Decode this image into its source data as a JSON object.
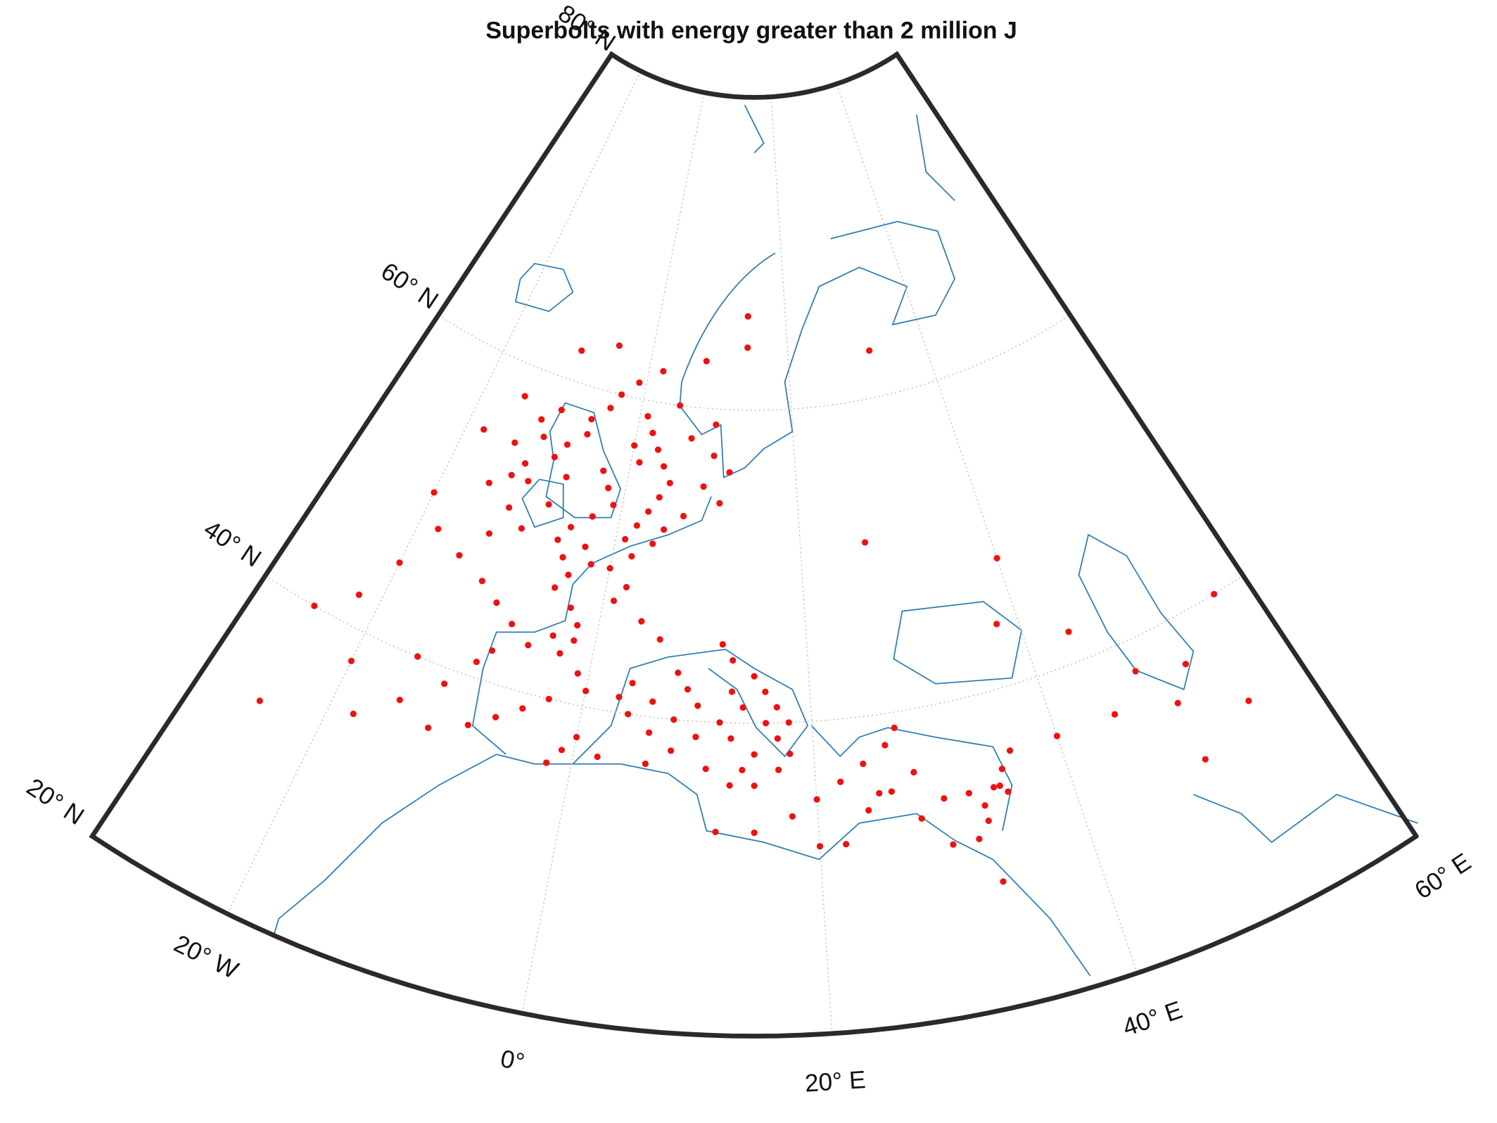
{
  "chart_data": {
    "type": "scatter",
    "title": "Superbolts with energy greater than 2 million J",
    "color": "#ee1111",
    "grid": true,
    "xlim": [
      -30,
      60
    ],
    "ylim": [
      20,
      80
    ],
    "xticks": [
      {
        "value": -20,
        "label": "20° W"
      },
      {
        "value": 0,
        "label": "0°"
      },
      {
        "value": 20,
        "label": "20° E"
      },
      {
        "value": 40,
        "label": "40° E"
      },
      {
        "value": 60,
        "label": "60° E"
      }
    ],
    "yticks": [
      {
        "value": 20,
        "label": "20° N"
      },
      {
        "value": 40,
        "label": "40° N"
      },
      {
        "value": 60,
        "label": "60° N"
      },
      {
        "value": 80,
        "label": "80° N"
      }
    ],
    "x": [
      -15,
      -13,
      -12,
      -14,
      -11,
      -12,
      -10,
      -9,
      -11,
      -12,
      -10,
      -8,
      -7,
      -8,
      -6,
      -6,
      -4,
      -3,
      -1,
      1,
      2,
      3,
      4,
      5,
      4,
      3,
      2,
      1,
      1,
      0,
      -3,
      -2,
      -1,
      -3,
      -5,
      -6,
      -5,
      -3,
      -2,
      -4,
      -5,
      -3,
      -2,
      -2,
      -4,
      -6,
      -8,
      -10,
      -12,
      -15,
      -18,
      -20,
      -22,
      -25,
      -20,
      -15,
      -12,
      -10,
      -9,
      -3,
      -1,
      0,
      -3,
      -5,
      -7,
      -9,
      -12,
      -18,
      -25,
      -15,
      -13,
      -20,
      -18,
      -15,
      -10,
      -5,
      2,
      5,
      7,
      10,
      12,
      9,
      11,
      10,
      8,
      14,
      7,
      5,
      4,
      2,
      0,
      2,
      1,
      4,
      6,
      8,
      9,
      10,
      12,
      13,
      15,
      14,
      10,
      8,
      6,
      4,
      3,
      4,
      6,
      8,
      6,
      2,
      0,
      -1,
      -2,
      11,
      13,
      15,
      17,
      18,
      17,
      18,
      17,
      16,
      15,
      13,
      12,
      13,
      14,
      16,
      20,
      18,
      15,
      22,
      12,
      25,
      28,
      30,
      33,
      34,
      35,
      36,
      32,
      33,
      32,
      26,
      22,
      24,
      26,
      27,
      30,
      28,
      24,
      20,
      34.5,
      35,
      45,
      48,
      50,
      52,
      55,
      57,
      44,
      38,
      40,
      32,
      27,
      33,
      50,
      40,
      14
    ],
    "values": [
      52,
      53,
      54,
      55,
      56,
      57,
      58,
      55,
      53,
      51,
      50,
      52,
      54,
      56,
      57,
      58,
      59,
      60,
      61,
      59,
      58,
      57,
      56,
      55,
      54,
      53,
      52,
      51,
      56,
      57,
      55,
      54,
      53,
      52,
      51,
      50,
      49,
      50,
      49,
      48,
      47,
      46,
      45,
      44,
      44,
      43,
      44,
      45,
      46,
      47,
      48,
      45,
      42,
      40,
      38,
      37,
      39,
      41,
      42,
      43,
      42,
      41,
      40,
      39,
      38,
      37,
      36,
      35,
      33,
      40,
      49,
      50,
      55,
      58,
      62,
      63,
      62,
      60,
      58,
      57,
      56,
      55,
      54,
      59,
      63,
      64,
      53,
      52,
      51,
      50,
      49,
      48,
      47,
      46,
      45,
      43,
      42,
      41,
      40,
      39,
      38,
      37,
      39,
      40,
      41,
      42,
      41,
      40,
      39,
      38,
      37,
      37,
      38,
      37,
      36,
      37,
      36,
      36,
      37,
      38,
      39,
      40,
      41,
      42,
      43,
      44,
      45,
      42,
      41,
      40,
      35,
      34,
      33,
      32,
      33,
      35,
      36,
      34,
      33,
      34,
      35,
      36,
      34,
      32,
      31,
      35,
      36,
      37,
      38,
      39,
      31,
      33,
      34,
      32,
      34,
      33.5,
      36,
      38,
      35,
      37,
      33,
      40,
      42,
      44,
      48,
      63,
      51,
      28,
      31,
      36,
      66
    ]
  }
}
